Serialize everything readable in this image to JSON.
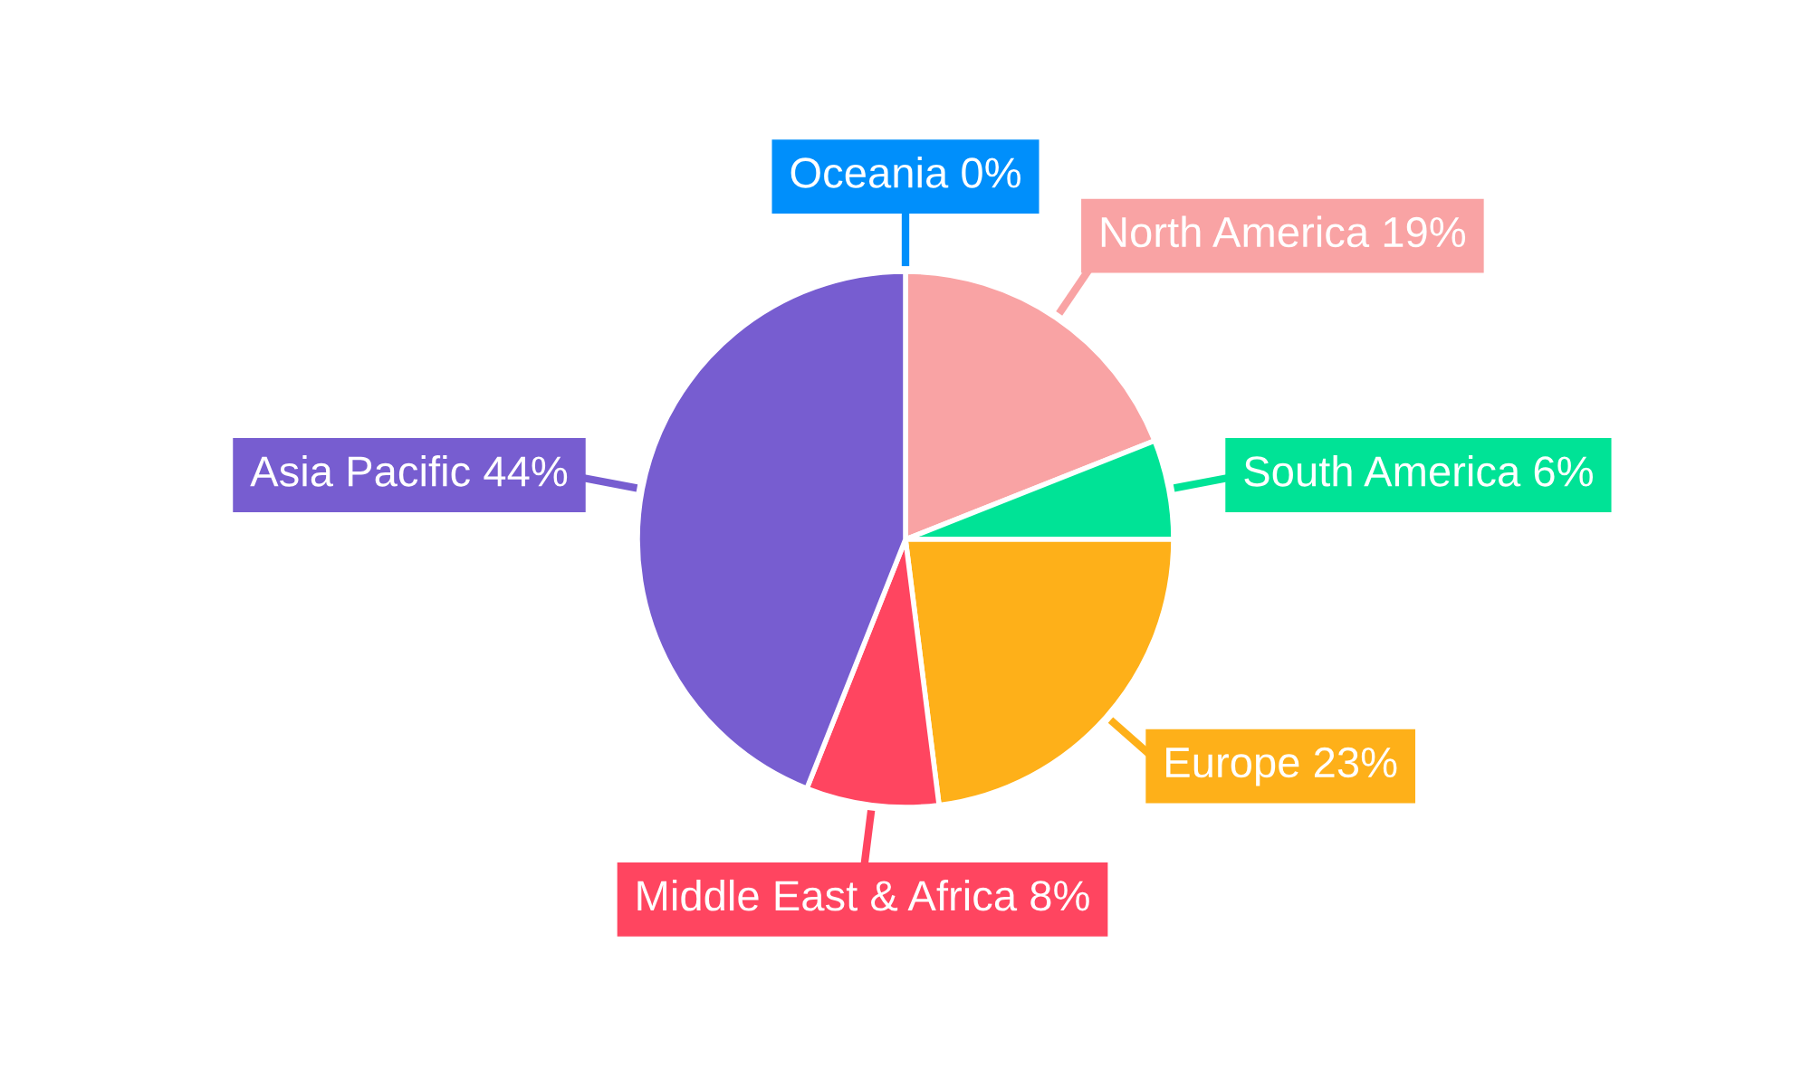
{
  "chart_data": {
    "type": "pie",
    "categories": [
      "Oceania",
      "North America",
      "South America",
      "Europe",
      "Middle East & Africa",
      "Asia Pacific"
    ],
    "values": [
      0,
      19,
      6,
      23,
      8,
      44
    ],
    "value_labels": [
      "0%",
      "19%",
      "6%",
      "23%",
      "8%",
      "44%"
    ],
    "colors": [
      "#008ffb",
      "#f9a3a4",
      "#00e396",
      "#feb019",
      "#ff4560",
      "#775dd0"
    ],
    "legend": false
  }
}
